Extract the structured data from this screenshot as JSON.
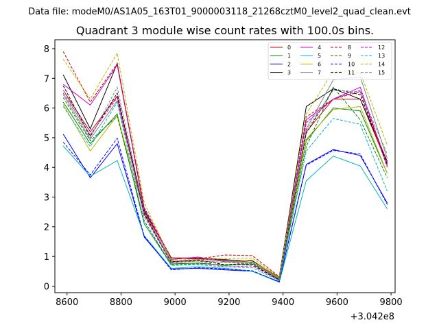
{
  "header": {
    "file_label": "Data file: modeM0/AS1A05_163T01_9000003118_21268cztM0_level2_quad_clean.evt"
  },
  "chart_data": {
    "type": "line",
    "title": "Quadrant 3 module wise count rates with 100.0s bins.",
    "xlabel": "",
    "ylabel": "",
    "x_offset_label": "+3.042e8",
    "x_offset": 304200000,
    "x": [
      8586,
      8686,
      8786,
      8886,
      8986,
      9086,
      9186,
      9286,
      9386,
      9486,
      9586,
      9686,
      9786
    ],
    "xlim": [
      8555,
      9815
    ],
    "ylim": [
      -0.22,
      8.3
    ],
    "x_ticks": [
      8600,
      8800,
      9000,
      9200,
      9400,
      9600,
      9800
    ],
    "y_ticks": [
      0,
      1,
      2,
      3,
      4,
      5,
      6,
      7,
      8
    ],
    "grid": false,
    "legend": {
      "placement": "top-right",
      "columns": 4
    },
    "series": [
      {
        "name": "0",
        "color": "#cc0000",
        "dash": false,
        "values": [
          6.6,
          5.2,
          6.4,
          2.5,
          0.95,
          0.95,
          0.9,
          0.8,
          0.28,
          5.2,
          6.3,
          6.3,
          4.1
        ]
      },
      {
        "name": "1",
        "color": "#008000",
        "dash": false,
        "values": [
          6.2,
          4.8,
          5.8,
          2.1,
          0.75,
          0.78,
          0.7,
          0.75,
          0.22,
          4.9,
          6.0,
          5.9,
          3.8
        ]
      },
      {
        "name": "2",
        "color": "#0000ff",
        "dash": false,
        "values": [
          5.12,
          3.65,
          4.8,
          1.65,
          0.58,
          0.6,
          0.55,
          0.5,
          0.15,
          4.1,
          4.6,
          4.4,
          2.8
        ]
      },
      {
        "name": "3",
        "color": "#000000",
        "dash": false,
        "values": [
          7.12,
          5.3,
          7.5,
          2.55,
          0.95,
          0.92,
          0.88,
          0.85,
          0.3,
          6.05,
          6.65,
          6.3,
          4.2
        ]
      },
      {
        "name": "4",
        "color": "#cc00cc",
        "dash": false,
        "values": [
          6.8,
          6.1,
          7.45,
          2.6,
          0.9,
          0.98,
          0.82,
          0.8,
          0.25,
          5.6,
          6.3,
          6.7,
          4.05
        ]
      },
      {
        "name": "5",
        "color": "#00b5b5",
        "dash": false,
        "values": [
          4.72,
          3.7,
          4.23,
          1.7,
          0.6,
          0.65,
          0.6,
          0.5,
          0.13,
          3.55,
          4.38,
          4.05,
          2.6
        ]
      },
      {
        "name": "6",
        "color": "#b5b500",
        "dash": false,
        "values": [
          6.12,
          4.55,
          5.75,
          2.45,
          0.85,
          0.85,
          0.8,
          0.88,
          0.27,
          4.95,
          5.95,
          6.05,
          3.8
        ]
      },
      {
        "name": "7",
        "color": "#808080",
        "dash": false,
        "values": [
          6.45,
          4.95,
          6.25,
          2.4,
          0.82,
          0.9,
          0.85,
          0.8,
          0.25,
          5.3,
          6.95,
          7.05,
          4.3
        ]
      },
      {
        "name": "8",
        "color": "#cc0000",
        "dash": true,
        "values": [
          7.9,
          6.2,
          7.5,
          2.65,
          0.95,
          0.92,
          1.05,
          1.03,
          0.32,
          5.7,
          6.3,
          6.55,
          4.15
        ]
      },
      {
        "name": "9",
        "color": "#008000",
        "dash": true,
        "values": [
          6.35,
          4.9,
          5.72,
          2.2,
          0.72,
          0.75,
          0.72,
          0.78,
          0.2,
          4.7,
          6.7,
          5.6,
          3.65
        ]
      },
      {
        "name": "10",
        "color": "#0000ff",
        "dash": true,
        "values": [
          4.85,
          3.75,
          4.98,
          1.68,
          0.55,
          0.62,
          0.58,
          0.52,
          0.14,
          4.08,
          4.57,
          4.45,
          2.75
        ]
      },
      {
        "name": "11",
        "color": "#000000",
        "dash": true,
        "values": [
          6.75,
          5.05,
          6.5,
          2.45,
          0.82,
          0.88,
          0.72,
          0.72,
          0.22,
          5.15,
          6.65,
          6.45,
          4.1
        ]
      },
      {
        "name": "12",
        "color": "#cc00cc",
        "dash": true,
        "values": [
          6.5,
          5.1,
          6.35,
          2.35,
          0.78,
          0.85,
          0.65,
          0.68,
          0.2,
          5.5,
          6.3,
          6.6,
          4.0
        ]
      },
      {
        "name": "13",
        "color": "#00b5b5",
        "dash": true,
        "values": [
          6.05,
          4.7,
          6.2,
          2.1,
          0.7,
          0.72,
          0.65,
          0.62,
          0.18,
          4.55,
          5.65,
          5.45,
          3.2
        ]
      },
      {
        "name": "14",
        "color": "#b5b500",
        "dash": true,
        "values": [
          7.65,
          6.3,
          7.85,
          2.8,
          0.88,
          0.9,
          0.92,
          0.95,
          0.3,
          5.8,
          7.25,
          7.2,
          4.75
        ]
      },
      {
        "name": "15",
        "color": "#808080",
        "dash": true,
        "values": [
          6.6,
          5.0,
          6.7,
          2.5,
          0.8,
          0.85,
          0.8,
          0.75,
          0.24,
          5.25,
          6.6,
          6.55,
          4.45
        ]
      }
    ]
  }
}
